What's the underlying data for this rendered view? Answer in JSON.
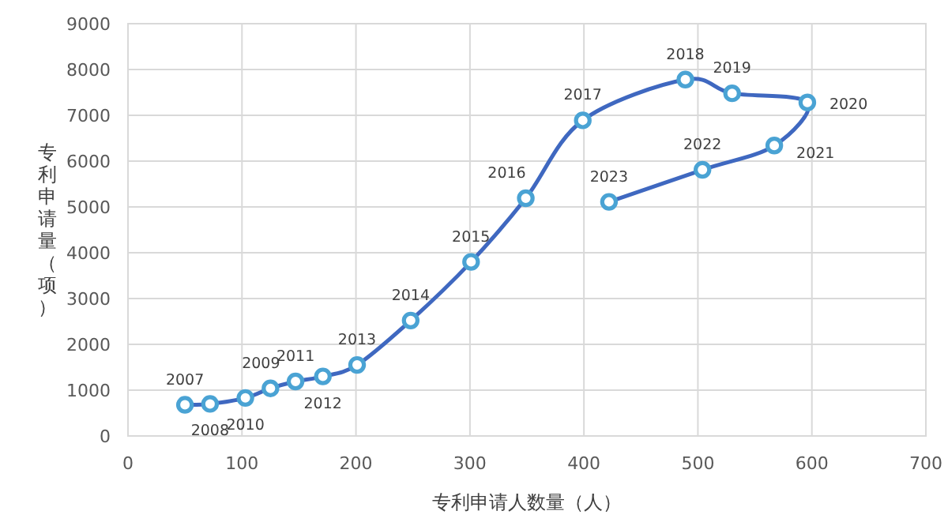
{
  "chart_data": {
    "type": "line",
    "xlabel": "专利申请人数量（人）",
    "ylabel": "专利申请量（项）",
    "xlim": [
      0,
      700
    ],
    "xticks": [
      0,
      100,
      200,
      300,
      400,
      500,
      600,
      700
    ],
    "ylim": [
      0,
      9000
    ],
    "yticks": [
      0,
      1000,
      2000,
      3000,
      4000,
      5000,
      6000,
      7000,
      8000,
      9000
    ],
    "grid": true,
    "marker": "circle",
    "line_style": "solid",
    "series": [
      {
        "color": "#3f68c0",
        "x": [
          50,
          72,
          103,
          125,
          147,
          171,
          201,
          248,
          301,
          349,
          399,
          489,
          530,
          596,
          567,
          504,
          422
        ],
        "values": [
          680,
          700,
          830,
          1040,
          1190,
          1300,
          1550,
          2520,
          3800,
          5190,
          6890,
          7780,
          7480,
          7280,
          6340,
          5810,
          5110
        ],
        "colors": [
          "#4aa3d4",
          "#4aa3d4",
          "#4aa3d4",
          "#4aa3d4",
          "#4aa3d4",
          "#4aa3d4",
          "#4aa3d4",
          "#4aa3d4",
          "#4aa3d4",
          "#4aa3d4",
          "#4aa3d4",
          "#4aa3d4",
          "#4aa3d4",
          "#4aa3d4",
          "#4aa3d4",
          "#4aa3d4",
          "#4aa3d4"
        ]
      }
    ],
    "annotations": [
      {
        "text": "2007",
        "x": 50,
        "y": 680
      },
      {
        "text": "2008",
        "x": 72,
        "y": 700
      },
      {
        "text": "2009",
        "x": 125,
        "y": 1040
      },
      {
        "text": "2010",
        "x": 103,
        "y": 830
      },
      {
        "text": "2011",
        "x": 147,
        "y": 1190
      },
      {
        "text": "2012",
        "x": 171,
        "y": 1300
      },
      {
        "text": "2013",
        "x": 201,
        "y": 1550
      },
      {
        "text": "2014",
        "x": 248,
        "y": 2520
      },
      {
        "text": "2015",
        "x": 301,
        "y": 3800
      },
      {
        "text": "2016",
        "x": 349,
        "y": 5190
      },
      {
        "text": "2017",
        "x": 399,
        "y": 6890
      },
      {
        "text": "2018",
        "x": 489,
        "y": 7780
      },
      {
        "text": "2019",
        "x": 530,
        "y": 7480
      },
      {
        "text": "2020",
        "x": 596,
        "y": 7280
      },
      {
        "text": "2021",
        "x": 567,
        "y": 6340
      },
      {
        "text": "2022",
        "x": 504,
        "y": 5810
      },
      {
        "text": "2023",
        "x": 422,
        "y": 5110
      }
    ]
  }
}
